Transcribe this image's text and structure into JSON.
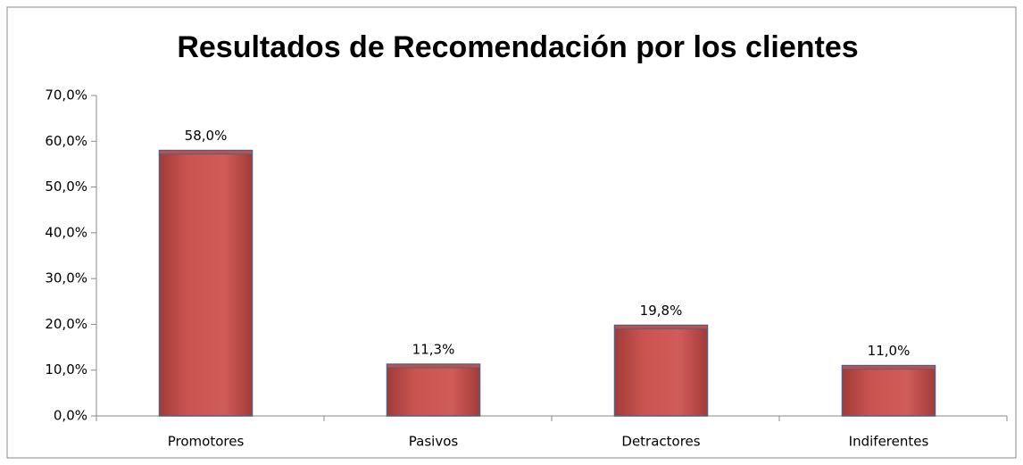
{
  "chart_data": {
    "type": "bar",
    "title": "Resultados de Recomendación por los clientes",
    "categories": [
      "Promotores",
      "Pasivos",
      "Detractores",
      "Indiferentes"
    ],
    "values": [
      58.0,
      11.3,
      19.8,
      11.0
    ],
    "value_labels": [
      "58,0%",
      "11,3%",
      "19,8%",
      "11,0%"
    ],
    "color": "#c0504d",
    "ylim": [
      0,
      70
    ],
    "yticks": [
      {
        "value": 0,
        "label": "0,0%"
      },
      {
        "value": 10,
        "label": "10,0%"
      },
      {
        "value": 20,
        "label": "20,0%"
      },
      {
        "value": 30,
        "label": "30,0%"
      },
      {
        "value": 40,
        "label": "40,0%"
      },
      {
        "value": 50,
        "label": "50,0%"
      },
      {
        "value": 60,
        "label": "60,0%"
      },
      {
        "value": 70,
        "label": "70,0%"
      }
    ],
    "grid": false
  }
}
